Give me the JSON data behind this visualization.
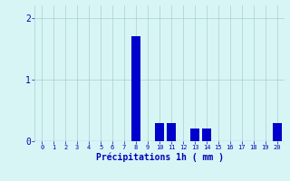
{
  "categories": [
    0,
    1,
    2,
    3,
    4,
    5,
    6,
    7,
    8,
    9,
    10,
    11,
    12,
    13,
    14,
    15,
    16,
    17,
    18,
    19,
    20
  ],
  "values": [
    0,
    0,
    0,
    0,
    0,
    0,
    0,
    0,
    1.7,
    0,
    0.3,
    0.3,
    0,
    0.2,
    0.2,
    0,
    0,
    0,
    0,
    0,
    0.3
  ],
  "bar_color": "#0000cc",
  "background_color": "#d8f5f5",
  "grid_color": "#aacfcf",
  "xlabel": "Précipitations 1h ( mm )",
  "xlabel_color": "#0000bb",
  "tick_color": "#0000bb",
  "ylim": [
    0,
    2.2
  ],
  "yticks": [
    0,
    1,
    2
  ],
  "xlim": [
    -0.6,
    20.6
  ]
}
